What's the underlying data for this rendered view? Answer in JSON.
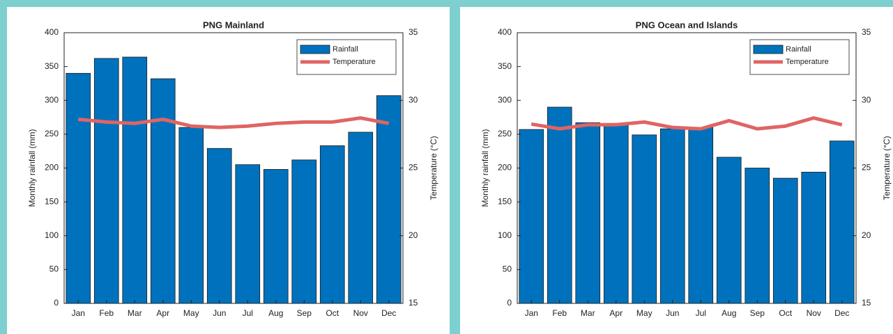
{
  "chart_data": [
    {
      "type": "bar",
      "title": "PNG Mainland",
      "categories": [
        "Jan",
        "Feb",
        "Mar",
        "Apr",
        "May",
        "Jun",
        "Jul",
        "Aug",
        "Sep",
        "Oct",
        "Nov",
        "Dec"
      ],
      "series": [
        {
          "name": "Rainfall",
          "color": "#0072bd",
          "values": [
            340,
            362,
            364,
            332,
            260,
            229,
            205,
            198,
            212,
            233,
            253,
            307
          ]
        },
        {
          "name": "Temperature",
          "color": "#e06464",
          "axis": "y2",
          "values": [
            28.6,
            28.4,
            28.3,
            28.6,
            28.1,
            28.0,
            28.1,
            28.3,
            28.4,
            28.4,
            28.7,
            28.3
          ]
        }
      ],
      "ylabel": "Monthly rainfall (mm)",
      "y2label": "Temperature (°C)",
      "ylim": [
        0,
        400
      ],
      "yticks": [
        0,
        50,
        100,
        150,
        200,
        250,
        300,
        350,
        400
      ],
      "y2lim": [
        15,
        35
      ],
      "y2ticks": [
        15,
        20,
        25,
        30,
        35
      ],
      "grid": false,
      "legend": "top-right"
    },
    {
      "type": "bar",
      "title": "PNG Ocean and Islands",
      "categories": [
        "Jan",
        "Feb",
        "Mar",
        "Apr",
        "May",
        "Jun",
        "Jul",
        "Aug",
        "Sep",
        "Oct",
        "Nov",
        "Dec"
      ],
      "series": [
        {
          "name": "Rainfall",
          "color": "#0072bd",
          "values": [
            257,
            290,
            267,
            266,
            249,
            258,
            260,
            216,
            200,
            185,
            194,
            240
          ]
        },
        {
          "name": "Temperature",
          "color": "#e06464",
          "axis": "y2",
          "values": [
            28.25,
            27.9,
            28.2,
            28.2,
            28.4,
            28.0,
            27.9,
            28.5,
            27.9,
            28.1,
            28.7,
            28.2
          ]
        }
      ],
      "ylabel": "Monthly rainfall (mm)",
      "y2label": "Temperature (°C)",
      "ylim": [
        0,
        400
      ],
      "yticks": [
        0,
        50,
        100,
        150,
        200,
        250,
        300,
        350,
        400
      ],
      "y2lim": [
        15,
        35
      ],
      "y2ticks": [
        15,
        20,
        25,
        30,
        35
      ],
      "grid": false,
      "legend": "top-right"
    }
  ]
}
